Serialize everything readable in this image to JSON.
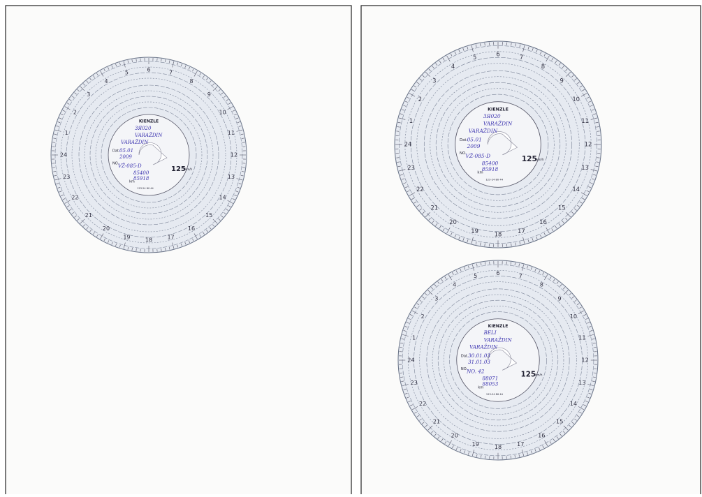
{
  "pages": [
    {
      "discs": [
        {
          "handwriting": [
            "3Я020",
            "VARAŽDIN",
            "VARAŽDIN",
            "05.01",
            "2009",
            "VŽ-085-D",
            "85400",
            "85918"
          ]
        }
      ]
    },
    {
      "discs": [
        {
          "handwriting": [
            "3Я020",
            "VARAŽDIN",
            "VARAŽDIN",
            "05.01",
            "2009",
            "VŽ-085-D",
            "85400",
            "85918"
          ]
        },
        {
          "handwriting": [
            "BELI",
            "VARAŽDIN",
            "VARAŽDIN",
            "30.01.03",
            "31.01.03",
            "NO. 42",
            "88071",
            "88053"
          ]
        }
      ]
    }
  ],
  "disc_print": {
    "brand": "KIENZLE",
    "speed": "125",
    "speed_unit": "km/h",
    "date": "Dat.",
    "number": "NO.",
    "km": "km",
    "code": "123-24 80 44"
  },
  "hours": [
    "1",
    "2",
    "3",
    "4",
    "5",
    "6",
    "7",
    "8",
    "9",
    "10",
    "11",
    "12",
    "13",
    "14",
    "15",
    "16",
    "17",
    "18",
    "19",
    "20",
    "21",
    "22",
    "23",
    "24"
  ]
}
